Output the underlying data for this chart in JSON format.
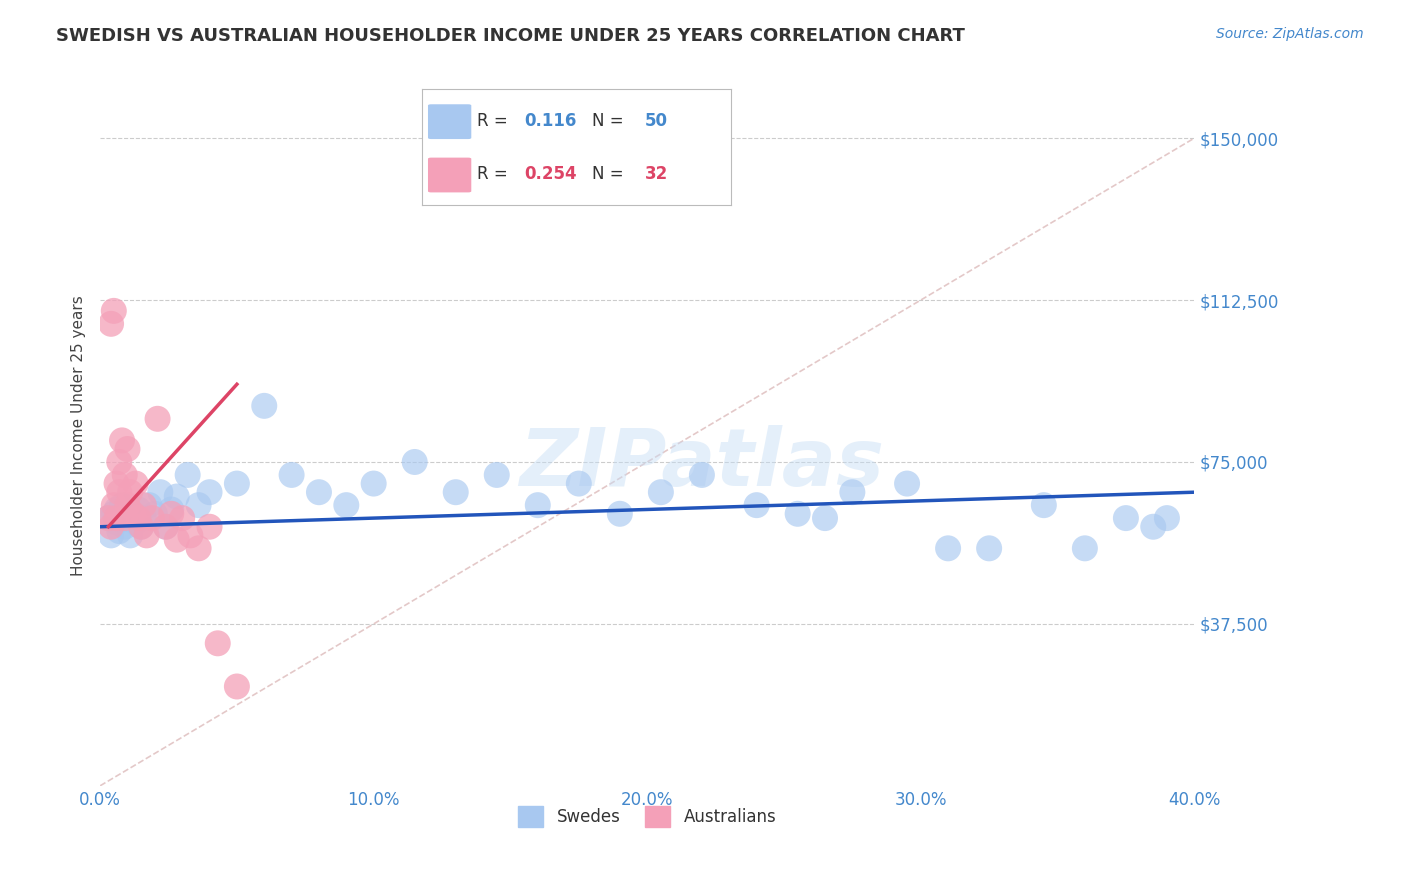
{
  "title": "SWEDISH VS AUSTRALIAN HOUSEHOLDER INCOME UNDER 25 YEARS CORRELATION CHART",
  "source_text": "Source: ZipAtlas.com",
  "ylabel": "Householder Income Under 25 years",
  "xlim": [
    0.0,
    0.4
  ],
  "ylim": [
    0,
    162000
  ],
  "xticks": [
    0.0,
    0.1,
    0.2,
    0.3,
    0.4
  ],
  "xticklabels": [
    "0.0%",
    "10.0%",
    "20.0%",
    "30.0%",
    "40.0%"
  ],
  "yticks": [
    37500,
    75000,
    112500,
    150000
  ],
  "yticklabels": [
    "$37,500",
    "$75,000",
    "$112,500",
    "$150,000"
  ],
  "grid_color": "#cccccc",
  "bg_color": "#ffffff",
  "blue_color": "#a8c8f0",
  "pink_color": "#f4a0b8",
  "blue_line_color": "#2255bb",
  "pink_line_color": "#dd4466",
  "diag_line_color": "#ddbbbb",
  "R_blue": "0.116",
  "N_blue": "50",
  "R_pink": "0.254",
  "N_pink": "32",
  "legend_blue_label": "Swedes",
  "legend_pink_label": "Australians",
  "title_color": "#333333",
  "axis_color": "#4488cc",
  "watermark": "ZIPatlas",
  "swedes_x": [
    0.003,
    0.004,
    0.005,
    0.006,
    0.006,
    0.007,
    0.008,
    0.009,
    0.01,
    0.011,
    0.012,
    0.013,
    0.014,
    0.015,
    0.016,
    0.018,
    0.02,
    0.022,
    0.024,
    0.026,
    0.028,
    0.032,
    0.036,
    0.04,
    0.05,
    0.06,
    0.07,
    0.08,
    0.09,
    0.1,
    0.115,
    0.13,
    0.145,
    0.16,
    0.175,
    0.19,
    0.205,
    0.22,
    0.24,
    0.255,
    0.265,
    0.275,
    0.295,
    0.31,
    0.325,
    0.345,
    0.36,
    0.375,
    0.385,
    0.39
  ],
  "swedes_y": [
    62000,
    58000,
    63000,
    61000,
    64000,
    59000,
    65000,
    60000,
    62000,
    58000,
    63000,
    61000,
    64000,
    60000,
    62000,
    65000,
    63000,
    68000,
    60000,
    64000,
    67000,
    72000,
    65000,
    68000,
    70000,
    88000,
    72000,
    68000,
    65000,
    70000,
    75000,
    68000,
    72000,
    65000,
    70000,
    63000,
    68000,
    72000,
    65000,
    63000,
    62000,
    68000,
    70000,
    55000,
    55000,
    65000,
    55000,
    62000,
    60000,
    62000
  ],
  "aussies_x": [
    0.003,
    0.004,
    0.004,
    0.005,
    0.005,
    0.006,
    0.006,
    0.007,
    0.007,
    0.008,
    0.009,
    0.009,
    0.01,
    0.01,
    0.011,
    0.012,
    0.013,
    0.014,
    0.015,
    0.016,
    0.017,
    0.019,
    0.021,
    0.024,
    0.026,
    0.028,
    0.03,
    0.033,
    0.036,
    0.04,
    0.043,
    0.05
  ],
  "aussies_y": [
    62000,
    60000,
    107000,
    110000,
    65000,
    70000,
    62000,
    75000,
    68000,
    80000,
    62000,
    72000,
    65000,
    78000,
    68000,
    63000,
    70000,
    62000,
    60000,
    65000,
    58000,
    62000,
    85000,
    60000,
    63000,
    57000,
    62000,
    58000,
    55000,
    60000,
    33000,
    23000
  ]
}
